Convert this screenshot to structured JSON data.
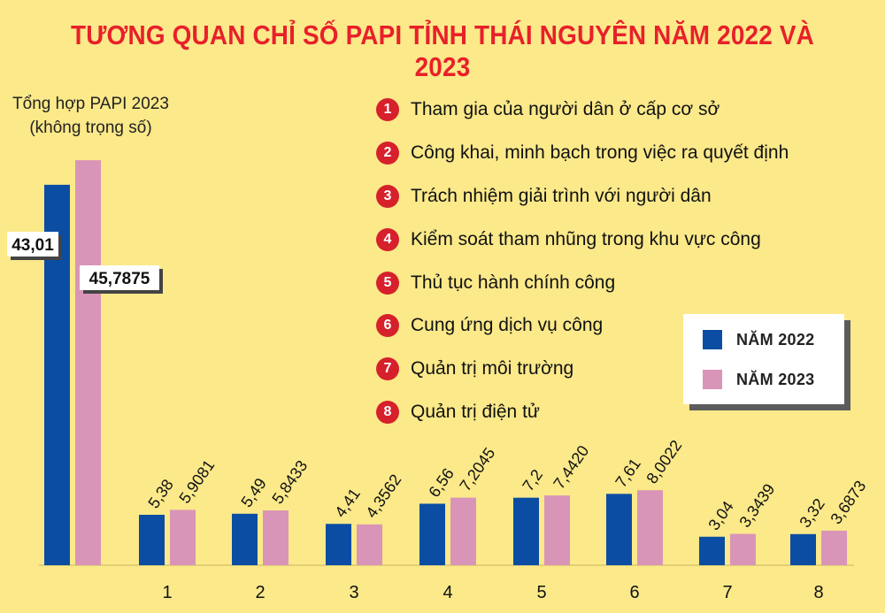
{
  "title": "TƯƠNG QUAN CHỈ SỐ PAPI TỈNH THÁI NGUYÊN NĂM 2022 VÀ 2023",
  "colors": {
    "series_2022": "#0b4da2",
    "series_2023": "#d995b7",
    "background": "#fbe98a",
    "title": "#e8202a",
    "badge": "#d6202b"
  },
  "total_label": {
    "line1": "Tổng hợp PAPI 2023",
    "line2": "(không trọng số)"
  },
  "criteria": [
    {
      "num": "1",
      "text": "Tham gia của người dân ở cấp cơ sở"
    },
    {
      "num": "2",
      "text": "Công khai, minh bạch trong việc ra quyết định"
    },
    {
      "num": "3",
      "text": "Trách nhiệm giải trình với người dân"
    },
    {
      "num": "4",
      "text": "Kiểm soát tham nhũng trong khu vực công"
    },
    {
      "num": "5",
      "text": "Thủ tục hành chính công"
    },
    {
      "num": "6",
      "text": "Cung ứng dịch vụ công"
    },
    {
      "num": "7",
      "text": "Quản trị môi trường"
    },
    {
      "num": "8",
      "text": "Quản trị điện tử"
    }
  ],
  "legend": {
    "label_2022": "NĂM 2022",
    "label_2023": "NĂM 2023"
  },
  "chart_data": {
    "type": "bar",
    "categories": [
      "",
      "1",
      "2",
      "3",
      "4",
      "5",
      "6",
      "7",
      "8"
    ],
    "series": [
      {
        "name": "NĂM 2022",
        "values": [
          43.01,
          5.38,
          5.49,
          4.41,
          6.56,
          7.2,
          7.61,
          3.04,
          3.32
        ],
        "labels": [
          "43,01",
          "5,38",
          "5,49",
          "4,41",
          "6,56",
          "7,2",
          "7,61",
          "3,04",
          "3,32"
        ]
      },
      {
        "name": "NĂM 2023",
        "values": [
          45.7875,
          5.9081,
          5.8433,
          4.3562,
          7.2045,
          7.442,
          8.0022,
          3.3439,
          3.6873
        ],
        "labels": [
          "45,7875",
          "5,9081",
          "5,8433",
          "4,3562",
          "7,2045",
          "7,4420",
          "8,0022",
          "3,3439",
          "3,6873"
        ]
      }
    ],
    "ylim": [
      0,
      46
    ]
  }
}
